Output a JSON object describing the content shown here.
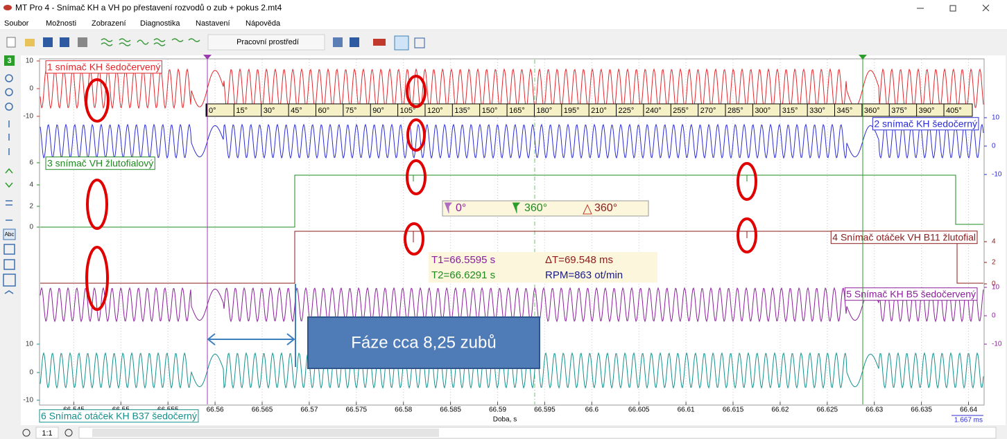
{
  "window": {
    "title": "MT Pro 4 - Snímač KH a VH po přestavení rozvodů o zub + pokus 2.mt4"
  },
  "menu": [
    "Soubor",
    "Možnosti",
    "Zobrazení",
    "Diagnostika",
    "Nastavení",
    "Nápověda"
  ],
  "toolbar": {
    "workspace": "Pracovní prostředí"
  },
  "sidebar": {
    "channel_button": "3",
    "text_tool": "Abc"
  },
  "plot": {
    "channels": [
      {
        "label": "1 snímač KH šedočervený",
        "color": "#e3262b",
        "side": "left",
        "scale": [
          "10",
          "0",
          "-10"
        ]
      },
      {
        "label": "2 snímač KH šedočerný",
        "color": "#2b2bd6",
        "side": "right",
        "scale": [
          "10",
          "0",
          "-10"
        ]
      },
      {
        "label": "3 snímač VH žlutofialový",
        "color": "#1e8a1e",
        "side": "left",
        "scale": [
          "6",
          "4",
          "2",
          "0"
        ]
      },
      {
        "label": "4 Snímač otáček VH B11 žlutofial",
        "color": "#8b1a1a",
        "side": "right",
        "scale": [
          "4",
          "2",
          "0"
        ]
      },
      {
        "label": "5 Snímač KH B5 šedočervený",
        "color": "#8a1f9a",
        "side": "right",
        "scale": [
          "10",
          "0",
          "-10"
        ]
      },
      {
        "label": "6 Snímač otáček KH B37 šedočerný",
        "color": "#13908c",
        "side": "left",
        "scale": [
          "10",
          "0",
          "-10"
        ]
      }
    ],
    "degree_ticks": [
      "0°",
      "15°",
      "30°",
      "45°",
      "60°",
      "75°",
      "90°",
      "105°",
      "120°",
      "135°",
      "150°",
      "165°",
      "180°",
      "195°",
      "210°",
      "225°",
      "240°",
      "255°",
      "270°",
      "285°",
      "300°",
      "315°",
      "330°",
      "345°",
      "360°",
      "375°",
      "390°",
      "405°"
    ],
    "time_ticks": [
      "66.545",
      "66.55",
      "66.555",
      "66.56",
      "66.565",
      "66.57",
      "66.575",
      "66.58",
      "66.585",
      "66.59",
      "66.595",
      "66.6",
      "66.605",
      "66.61",
      "66.615",
      "66.62",
      "66.625",
      "66.63",
      "66.635",
      "66.64"
    ],
    "time_axis_label": "Doba, s",
    "time_span": "1.667 ms"
  },
  "cursors": {
    "c1": "0°",
    "c2": "360°",
    "delta": "360°",
    "t1": "T1=66.5595 s",
    "t2": "T2=66.6291 s",
    "dt": "ΔT=69.548 ms",
    "rpm": "RPM=863 ot/min"
  },
  "annotation": "Fáze cca 8,25 zubů",
  "status": {
    "zoom": "1:1"
  }
}
